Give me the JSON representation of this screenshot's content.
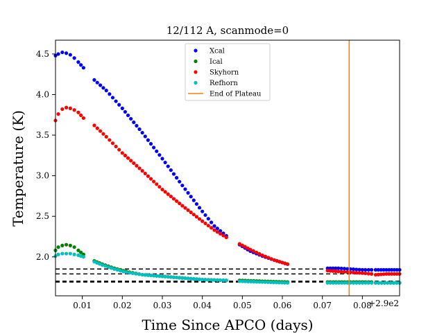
{
  "chart_data": {
    "type": "scatter",
    "title": "12/112 A, scanmode=0",
    "xlabel": "Time Since APCO (days)",
    "ylabel": "Temperature (K)",
    "x_offset_label": "+2.9e2",
    "xlim": [
      290.0033,
      290.0893
    ],
    "ylim": [
      1.52,
      4.67
    ],
    "xticks": [
      {
        "value": 290.01,
        "label": "0.01"
      },
      {
        "value": 290.02,
        "label": "0.02"
      },
      {
        "value": 290.03,
        "label": "0.03"
      },
      {
        "value": 290.04,
        "label": "0.04"
      },
      {
        "value": 290.05,
        "label": "0.05"
      },
      {
        "value": 290.06,
        "label": "0.06"
      },
      {
        "value": 290.07,
        "label": "0.07"
      },
      {
        "value": 290.08,
        "label": "0.08"
      }
    ],
    "yticks": [
      {
        "value": 2.0,
        "label": "2.0"
      },
      {
        "value": 2.5,
        "label": "2.5"
      },
      {
        "value": 3.0,
        "label": "3.0"
      },
      {
        "value": 3.5,
        "label": "3.5"
      },
      {
        "value": 4.0,
        "label": "4.0"
      },
      {
        "value": 4.5,
        "label": "4.5"
      }
    ],
    "legend_position": "top-center",
    "series": [
      {
        "name": "Xcal",
        "color": "#0000ff",
        "segments": [
          {
            "x": [
              290.0033,
              290.004,
              290.005,
              290.006,
              290.007,
              290.008,
              290.009,
              290.0103
            ],
            "y": [
              4.48,
              4.5,
              4.52,
              4.51,
              4.49,
              4.45,
              4.4,
              4.33
            ]
          },
          {
            "x": [
              290.013,
              290.016,
              290.02,
              290.025,
              290.03,
              290.035,
              290.04,
              290.043,
              290.046
            ],
            "y": [
              4.18,
              4.05,
              3.83,
              3.53,
              3.21,
              2.88,
              2.56,
              2.38,
              2.26
            ]
          },
          {
            "x": [
              290.0493,
              290.052,
              290.055,
              290.058,
              290.0613
            ],
            "y": [
              2.15,
              2.07,
              2.01,
              1.96,
              1.91
            ]
          },
          {
            "x": [
              290.0713,
              290.074,
              290.077,
              290.08,
              290.0823
            ],
            "y": [
              1.86,
              1.86,
              1.85,
              1.84,
              1.84
            ]
          },
          {
            "x": [
              290.0833,
              290.086,
              290.0893
            ],
            "y": [
              1.84,
              1.84,
              1.84
            ]
          }
        ]
      },
      {
        "name": "Ical",
        "color": "#008000",
        "segments": [
          {
            "x": [
              290.0033,
              290.004,
              290.005,
              290.006,
              290.007,
              290.008,
              290.009,
              290.0103
            ],
            "y": [
              2.08,
              2.12,
              2.14,
              2.15,
              2.14,
              2.12,
              2.08,
              2.03
            ]
          },
          {
            "x": [
              290.013,
              290.015,
              290.018,
              290.021,
              290.025,
              290.03,
              290.035,
              290.04,
              290.046
            ],
            "y": [
              1.95,
              1.91,
              1.86,
              1.82,
              1.78,
              1.76,
              1.74,
              1.72,
              1.71
            ]
          },
          {
            "x": [
              290.0493,
              290.055,
              290.0613
            ],
            "y": [
              1.71,
              1.7,
              1.69
            ]
          },
          {
            "x": [
              290.0713,
              290.077,
              290.0823
            ],
            "y": [
              1.69,
              1.69,
              1.69
            ]
          },
          {
            "x": [
              290.0833,
              290.0893
            ],
            "y": [
              1.68,
              1.68
            ]
          }
        ]
      },
      {
        "name": "Skyhorn",
        "color": "#ff0000",
        "segments": [
          {
            "x": [
              290.0033,
              290.004,
              290.005,
              290.006,
              290.007,
              290.008,
              290.009,
              290.0103
            ],
            "y": [
              3.68,
              3.76,
              3.82,
              3.84,
              3.83,
              3.81,
              3.78,
              3.71
            ]
          },
          {
            "x": [
              290.013,
              290.016,
              290.02,
              290.025,
              290.03,
              290.035,
              290.04,
              290.043,
              290.046
            ],
            "y": [
              3.62,
              3.48,
              3.28,
              3.06,
              2.83,
              2.63,
              2.44,
              2.33,
              2.24
            ]
          },
          {
            "x": [
              290.0493,
              290.052,
              290.055,
              290.058,
              290.0613
            ],
            "y": [
              2.16,
              2.09,
              2.02,
              1.96,
              1.91
            ]
          },
          {
            "x": [
              290.0713,
              290.074,
              290.077,
              290.08,
              290.0823
            ],
            "y": [
              1.83,
              1.82,
              1.81,
              1.8,
              1.79
            ]
          },
          {
            "x": [
              290.0833,
              290.086,
              290.0893
            ],
            "y": [
              1.78,
              1.79,
              1.79
            ]
          }
        ]
      },
      {
        "name": "Refhorn",
        "color": "#00bfbf",
        "segments": [
          {
            "x": [
              290.0033,
              290.004,
              290.005,
              290.006,
              290.007,
              290.008,
              290.009,
              290.0103
            ],
            "y": [
              2.01,
              2.03,
              2.04,
              2.04,
              2.04,
              2.03,
              2.02,
              2.0
            ]
          },
          {
            "x": [
              290.013,
              290.015,
              290.018,
              290.021,
              290.025,
              290.03,
              290.035,
              290.04,
              290.046
            ],
            "y": [
              1.94,
              1.9,
              1.85,
              1.81,
              1.78,
              1.76,
              1.74,
              1.72,
              1.71
            ]
          },
          {
            "x": [
              290.0493,
              290.055,
              290.0613
            ],
            "y": [
              1.7,
              1.69,
              1.68
            ]
          },
          {
            "x": [
              290.0713,
              290.077,
              290.0823
            ],
            "y": [
              1.68,
              1.68,
              1.68
            ]
          },
          {
            "x": [
              290.0833,
              290.0893
            ],
            "y": [
              1.68,
              1.68
            ]
          }
        ]
      }
    ],
    "vertical_lines": [
      {
        "name": "End of Plateau",
        "x": 290.0767,
        "color": "#ff7f0e"
      }
    ],
    "reference_lines": [
      {
        "y": 1.85,
        "color": "#000000",
        "style": "dashed"
      },
      {
        "y": 1.79,
        "color": "#000000",
        "style": "dashed"
      },
      {
        "y": 1.7,
        "color": "#000000",
        "style": "dashed"
      },
      {
        "y": 1.69,
        "color": "#000000",
        "style": "dashed"
      }
    ]
  }
}
